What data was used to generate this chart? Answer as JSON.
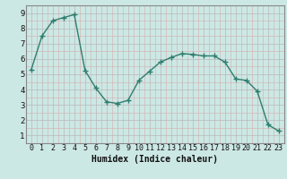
{
  "x": [
    0,
    1,
    2,
    3,
    4,
    5,
    6,
    7,
    8,
    9,
    10,
    11,
    12,
    13,
    14,
    15,
    16,
    17,
    18,
    19,
    20,
    21,
    22,
    23
  ],
  "y": [
    5.3,
    7.5,
    8.5,
    8.7,
    8.9,
    5.25,
    4.1,
    3.2,
    3.1,
    3.3,
    4.6,
    5.2,
    5.8,
    6.1,
    6.35,
    6.3,
    6.2,
    6.2,
    5.8,
    4.7,
    4.6,
    3.9,
    1.7,
    1.3
  ],
  "line_color": "#2e7d6e",
  "marker": "+",
  "marker_size": 4,
  "bg_color": "#cce8e4",
  "grid_color": "#b8b8b8",
  "grid_color_pink": "#d4b8b8",
  "xlabel": "Humidex (Indice chaleur)",
  "xlabel_fontsize": 7,
  "xlim": [
    -0.5,
    23.5
  ],
  "ylim": [
    0.5,
    9.5
  ],
  "yticks": [
    1,
    2,
    3,
    4,
    5,
    6,
    7,
    8,
    9
  ],
  "xticks": [
    0,
    1,
    2,
    3,
    4,
    5,
    6,
    7,
    8,
    9,
    10,
    11,
    12,
    13,
    14,
    15,
    16,
    17,
    18,
    19,
    20,
    21,
    22,
    23
  ]
}
